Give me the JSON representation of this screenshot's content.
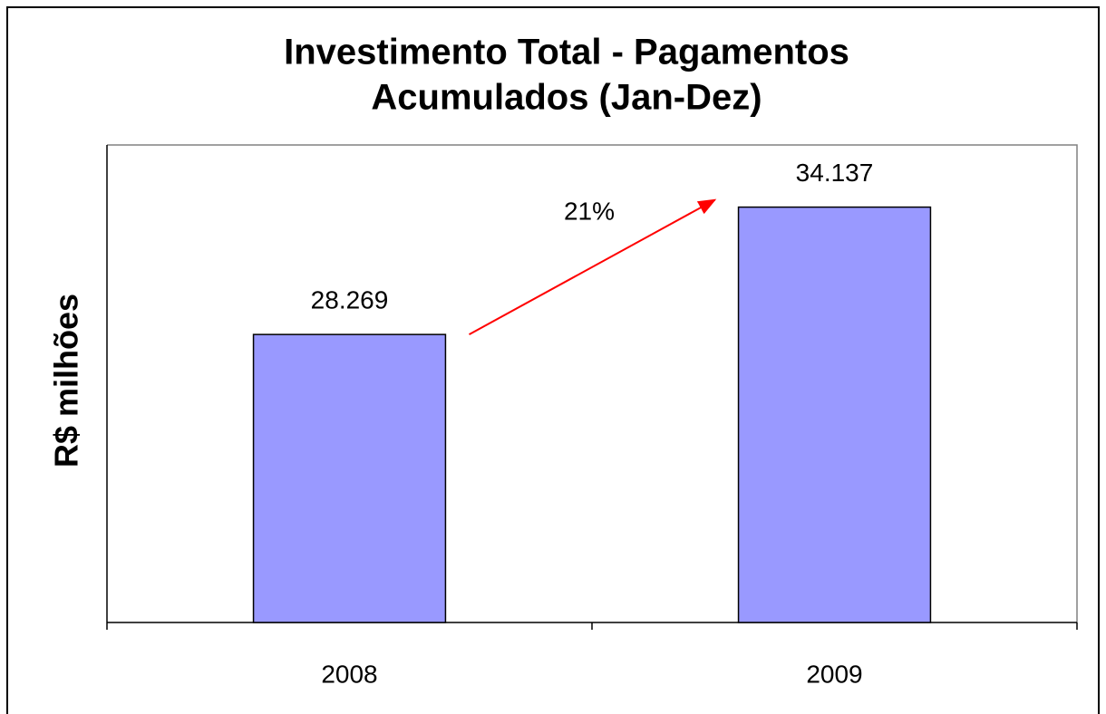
{
  "chart_data": {
    "type": "bar",
    "title": [
      "Investimento Total - Pagamentos",
      "Acumulados (Jan-Dez)"
    ],
    "y_label": "R$ milhões",
    "categories": [
      "2008",
      "2009"
    ],
    "values": [
      28269,
      34137
    ],
    "value_labels": [
      "28.269",
      "34.137"
    ],
    "color": "#9999ff",
    "ylim": [
      15000,
      37000
    ],
    "annotation": "21%",
    "annotation_color": "#ff0000"
  }
}
